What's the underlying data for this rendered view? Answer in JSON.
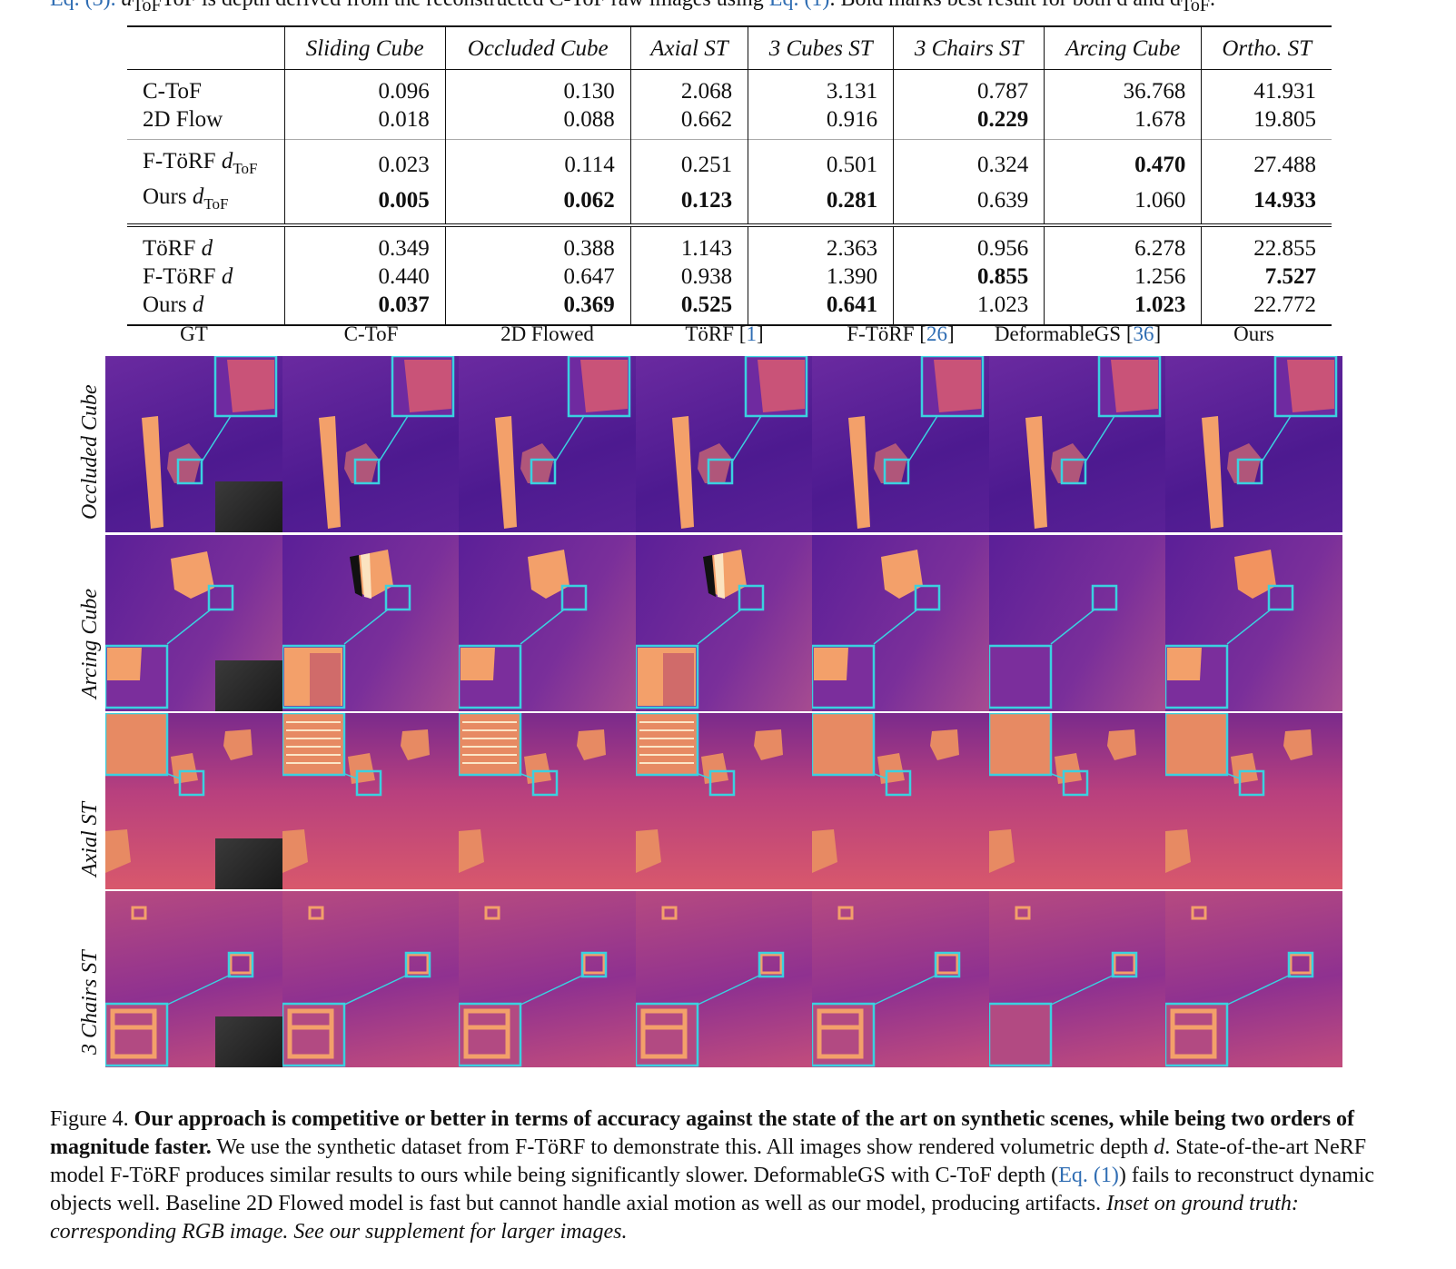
{
  "top_caption": {
    "lead": "Eq. (3). ",
    "text1": "d",
    "text2": "ToF is depth derived from the reconstructed C-ToF raw images using ",
    "link": "Eq. (1)",
    "text3": ". Bold marks best result for both d and d",
    "text4": "ToF",
    "text5": "."
  },
  "table": {
    "headers": [
      "",
      "Sliding Cube",
      "Occluded Cube",
      "Axial ST",
      "3 Cubes ST",
      "3 Chairs ST",
      "Arcing Cube",
      "Ortho. ST"
    ],
    "groups": [
      [
        {
          "label": "C-ToF",
          "values": [
            "0.096",
            "0.130",
            "2.068",
            "3.131",
            "0.787",
            "36.768",
            "41.931"
          ],
          "bold": []
        },
        {
          "label": "2D Flow",
          "values": [
            "0.018",
            "0.088",
            "0.662",
            "0.916",
            "0.229",
            "1.678",
            "19.805"
          ],
          "bold": [
            4
          ]
        }
      ],
      [
        {
          "label": "F-TöRF d",
          "sub": "ToF",
          "values": [
            "0.023",
            "0.114",
            "0.251",
            "0.501",
            "0.324",
            "0.470",
            "27.488"
          ],
          "bold": [
            5
          ]
        },
        {
          "label": "Ours d",
          "sub": "ToF",
          "values": [
            "0.005",
            "0.062",
            "0.123",
            "0.281",
            "0.639",
            "1.060",
            "14.933"
          ],
          "bold": [
            0,
            1,
            2,
            3,
            6
          ]
        }
      ],
      [
        {
          "label": "TöRF d",
          "values": [
            "0.349",
            "0.388",
            "1.143",
            "2.363",
            "0.956",
            "6.278",
            "22.855"
          ],
          "bold": []
        },
        {
          "label": "F-TöRF d",
          "values": [
            "0.440",
            "0.647",
            "0.938",
            "1.390",
            "0.855",
            "1.256",
            "7.527"
          ],
          "bold": [
            4,
            6
          ]
        },
        {
          "label": "Ours d",
          "values": [
            "0.037",
            "0.369",
            "0.525",
            "0.641",
            "1.023",
            "1.023",
            "22.772"
          ],
          "bold": [
            0,
            1,
            2,
            3,
            5
          ]
        }
      ]
    ]
  },
  "figure": {
    "columns": [
      {
        "label": "GT",
        "ref": ""
      },
      {
        "label": "C-ToF",
        "ref": ""
      },
      {
        "label": "2D Flowed",
        "ref": ""
      },
      {
        "label": "TöRF [",
        "ref": "1",
        "end": "]"
      },
      {
        "label": "F-TöRF [",
        "ref": "26",
        "end": "]"
      },
      {
        "label": "DeformableGS [",
        "ref": "36",
        "end": "]"
      },
      {
        "label": "Ours",
        "ref": ""
      }
    ],
    "rows": [
      "Occluded Cube",
      "Arcing Cube",
      "Axial ST",
      "3 Chairs ST"
    ],
    "colors": {
      "inset_border": "#3ad1e0",
      "deep_purple": "#4a1a8c",
      "orange": "#f3a06a"
    }
  },
  "caption": {
    "prefix": "Figure 4. ",
    "bold": "Our approach is competitive or better in terms of accuracy against the state of the art on synthetic scenes, while being two orders of magnitude faster.",
    "body1": " We use the synthetic dataset from F-TöRF to demonstrate this. All images show rendered volumetric depth ",
    "d": "d",
    "body2": ". State-of-the-art NeRF model F-TöRF produces similar results to ours while being significantly slower. DeformableGS with C-ToF depth (",
    "link": "Eq. (1)",
    "body3": ") fails to reconstruct dynamic objects well. Baseline 2D Flowed model is fast but cannot handle axial motion as well as our model, producing artifacts. ",
    "italic": "Inset on ground truth: corresponding RGB image. See our supplement for larger images."
  }
}
